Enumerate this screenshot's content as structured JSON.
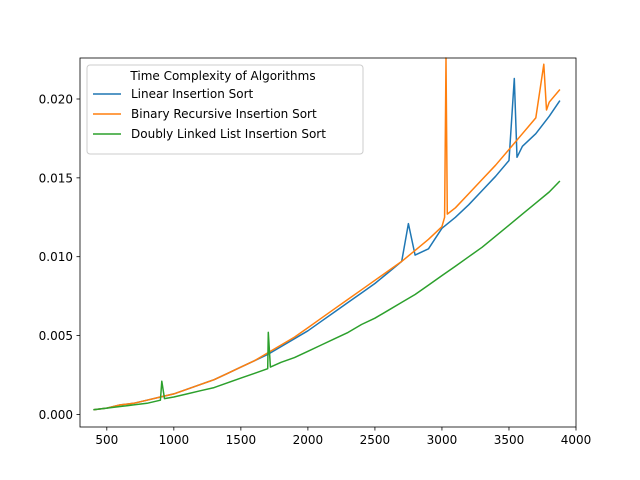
{
  "chart_data": {
    "type": "line",
    "legend_title": "Time Complexity of Algorithms",
    "legend_position": "top-left",
    "xlim": [
      300,
      4000
    ],
    "ylim": [
      -0.0008,
      0.0226
    ],
    "x_ticks": [
      500,
      1000,
      1500,
      2000,
      2500,
      3000,
      3500,
      4000
    ],
    "x_tick_labels": [
      "500",
      "1000",
      "1500",
      "2000",
      "2500",
      "3000",
      "3500",
      "4000"
    ],
    "y_ticks": [
      0.0,
      0.005,
      0.01,
      0.015,
      0.02
    ],
    "y_tick_labels": [
      "0.000",
      "0.005",
      "0.010",
      "0.015",
      "0.020"
    ],
    "grid": false,
    "series": [
      {
        "name": "Linear Insertion Sort",
        "color": "#1f77b4",
        "x": [
          400,
          500,
          600,
          700,
          800,
          900,
          1000,
          1100,
          1200,
          1300,
          1400,
          1500,
          1600,
          1700,
          1800,
          1900,
          2000,
          2100,
          2200,
          2300,
          2400,
          2500,
          2600,
          2700,
          2750,
          2800,
          2900,
          3000,
          3100,
          3200,
          3300,
          3400,
          3500,
          3540,
          3560,
          3600,
          3700,
          3800,
          3880
        ],
        "values": [
          0.0003,
          0.0004,
          0.0006,
          0.0007,
          0.0009,
          0.0011,
          0.0013,
          0.0016,
          0.0019,
          0.0022,
          0.0026,
          0.003,
          0.0034,
          0.0038,
          0.0043,
          0.0048,
          0.0053,
          0.0059,
          0.0065,
          0.0071,
          0.0077,
          0.0083,
          0.009,
          0.0097,
          0.0121,
          0.0101,
          0.0105,
          0.0118,
          0.0125,
          0.0133,
          0.0142,
          0.0151,
          0.0161,
          0.0213,
          0.0163,
          0.017,
          0.0178,
          0.0189,
          0.0199
        ]
      },
      {
        "name": "Binary Recursive Insertion Sort",
        "color": "#ff7f0e",
        "x": [
          400,
          500,
          600,
          700,
          800,
          900,
          1000,
          1100,
          1200,
          1300,
          1400,
          1500,
          1600,
          1700,
          1800,
          1900,
          2000,
          2100,
          2200,
          2300,
          2400,
          2500,
          2600,
          2700,
          2800,
          2900,
          3000,
          3020,
          3030,
          3040,
          3100,
          3200,
          3300,
          3400,
          3500,
          3600,
          3700,
          3760,
          3780,
          3800,
          3880
        ],
        "values": [
          0.0003,
          0.0004,
          0.0006,
          0.0007,
          0.0009,
          0.0011,
          0.0013,
          0.0016,
          0.0019,
          0.0022,
          0.0026,
          0.003,
          0.0034,
          0.0039,
          0.0044,
          0.0049,
          0.0055,
          0.0061,
          0.0067,
          0.0073,
          0.0079,
          0.0085,
          0.0091,
          0.0097,
          0.0104,
          0.0111,
          0.0119,
          0.0125,
          0.0226,
          0.0127,
          0.0131,
          0.014,
          0.0149,
          0.0158,
          0.0168,
          0.0178,
          0.0188,
          0.0222,
          0.0193,
          0.0198,
          0.0206
        ]
      },
      {
        "name": "Doubly Linked List Insertion Sort",
        "color": "#2ca02c",
        "x": [
          400,
          500,
          600,
          700,
          800,
          900,
          910,
          930,
          1000,
          1100,
          1200,
          1300,
          1400,
          1500,
          1600,
          1700,
          1705,
          1720,
          1800,
          1900,
          2000,
          2100,
          2200,
          2300,
          2400,
          2500,
          2600,
          2700,
          2800,
          2900,
          3000,
          3100,
          3200,
          3300,
          3400,
          3500,
          3600,
          3700,
          3800,
          3880
        ],
        "values": [
          0.0003,
          0.0004,
          0.0005,
          0.0006,
          0.0007,
          0.0009,
          0.0021,
          0.001,
          0.0011,
          0.0013,
          0.0015,
          0.0017,
          0.002,
          0.0023,
          0.0026,
          0.0029,
          0.0052,
          0.003,
          0.0033,
          0.0036,
          0.004,
          0.0044,
          0.0048,
          0.0052,
          0.0057,
          0.0061,
          0.0066,
          0.0071,
          0.0076,
          0.0082,
          0.0088,
          0.0094,
          0.01,
          0.0106,
          0.0113,
          0.012,
          0.0127,
          0.0134,
          0.0141,
          0.0148
        ]
      }
    ]
  }
}
